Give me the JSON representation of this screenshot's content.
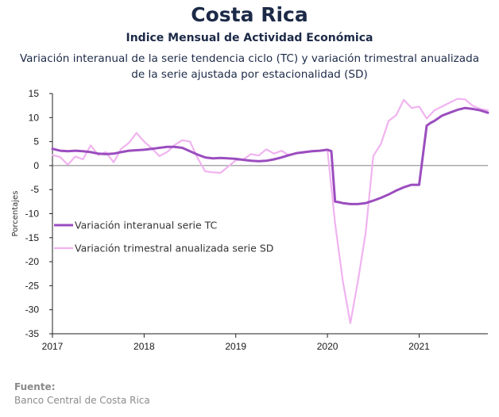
{
  "header": {
    "title": "Costa Rica",
    "subtitle": "Indice Mensual de  Actividad Económica",
    "description": "Variación interanual de la serie tendencia ciclo (TC) y variación trimestral anualizada de la serie ajustada por estacionalidad (SD)"
  },
  "source": {
    "label": "Fuente:",
    "text": "Banco Central de Costa Rica"
  },
  "chart_data": {
    "type": "line",
    "title": "Indice Mensual de  Actividad Económica",
    "xlabel": "",
    "ylabel": "Porcentajes",
    "ylim": [
      -35,
      15
    ],
    "yticks": [
      15,
      10,
      5,
      0,
      -5,
      -10,
      -15,
      -20,
      -25,
      -30,
      -35
    ],
    "xlim": [
      2017.0,
      2021.75
    ],
    "xticks": [
      2017,
      2018,
      2019,
      2020,
      2021
    ],
    "xtick_labels": [
      "2017",
      "2018",
      "2019",
      "2020",
      "2021"
    ],
    "grid": false,
    "zero_line": true,
    "legend_placement": "left",
    "series": [
      {
        "name": "Variación interanual serie TC",
        "color": "#9b4dbf",
        "x": [
          2017.0,
          2017.083,
          2017.167,
          2017.25,
          2017.333,
          2017.417,
          2017.5,
          2017.583,
          2017.667,
          2017.75,
          2017.833,
          2017.917,
          2018.0,
          2018.083,
          2018.167,
          2018.25,
          2018.333,
          2018.417,
          2018.5,
          2018.583,
          2018.667,
          2018.75,
          2018.833,
          2018.917,
          2019.0,
          2019.083,
          2019.167,
          2019.25,
          2019.333,
          2019.417,
          2019.5,
          2019.583,
          2019.667,
          2019.75,
          2019.833,
          2019.917,
          2020.0,
          2020.042,
          2020.083,
          2020.125,
          2020.167,
          2020.25,
          2020.333,
          2020.417,
          2020.5,
          2020.583,
          2020.667,
          2020.75,
          2020.833,
          2020.917,
          2021.0,
          2021.083,
          2021.125,
          2021.167,
          2021.25,
          2021.333,
          2021.417,
          2021.5,
          2021.583,
          2021.667,
          2021.75
        ],
        "values": [
          3.5,
          3.1,
          3.0,
          3.1,
          3.0,
          2.8,
          2.5,
          2.4,
          2.5,
          2.8,
          3.1,
          3.2,
          3.3,
          3.5,
          3.7,
          3.9,
          3.9,
          3.7,
          3.0,
          2.3,
          1.7,
          1.5,
          1.6,
          1.5,
          1.4,
          1.2,
          1.0,
          0.9,
          1.0,
          1.3,
          1.7,
          2.2,
          2.6,
          2.8,
          3.0,
          3.1,
          3.3,
          3.0,
          -7.5,
          -7.6,
          -7.8,
          -8.0,
          -8.0,
          -7.8,
          -7.3,
          -6.7,
          -6.0,
          -5.2,
          -4.5,
          -4.0,
          -4.0,
          8.3,
          8.9,
          9.3,
          10.4,
          11.0,
          11.6,
          12.0,
          11.8,
          11.5,
          11.0
        ]
      },
      {
        "name": "Variación trimestral anualizada serie SD",
        "color": "#f0b3f0",
        "x": [
          2017.0,
          2017.083,
          2017.167,
          2017.25,
          2017.333,
          2017.417,
          2017.5,
          2017.583,
          2017.667,
          2017.75,
          2017.833,
          2017.917,
          2018.0,
          2018.083,
          2018.167,
          2018.25,
          2018.333,
          2018.417,
          2018.5,
          2018.583,
          2018.667,
          2018.75,
          2018.833,
          2018.917,
          2019.0,
          2019.083,
          2019.167,
          2019.25,
          2019.333,
          2019.417,
          2019.5,
          2019.583,
          2019.667,
          2019.75,
          2019.833,
          2019.917,
          2020.0,
          2020.083,
          2020.167,
          2020.25,
          2020.333,
          2020.417,
          2020.5,
          2020.583,
          2020.667,
          2020.75,
          2020.833,
          2020.917,
          2021.0,
          2021.083,
          2021.167,
          2021.25,
          2021.333,
          2021.417,
          2021.5,
          2021.583,
          2021.667,
          2021.75
        ],
        "values": [
          2.2,
          1.8,
          0.2,
          1.9,
          1.3,
          4.2,
          2.2,
          2.8,
          0.7,
          3.5,
          4.7,
          6.8,
          5.0,
          3.6,
          2.0,
          2.8,
          4.3,
          5.3,
          5.0,
          1.6,
          -1.2,
          -1.4,
          -1.5,
          -0.2,
          1.1,
          1.3,
          2.4,
          2.1,
          3.4,
          2.5,
          3.1,
          2.1,
          2.6,
          2.7,
          3.1,
          3.1,
          3.3,
          -12.0,
          -24.0,
          -32.8,
          -24.0,
          -14.0,
          2.0,
          4.5,
          9.3,
          10.5,
          13.7,
          12.0,
          12.3,
          9.8,
          11.5,
          12.3,
          13.1,
          13.9,
          13.8,
          12.5,
          11.8,
          11.5
        ]
      }
    ]
  }
}
